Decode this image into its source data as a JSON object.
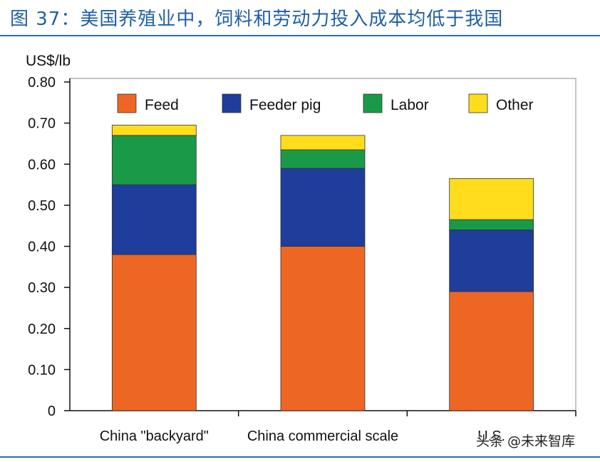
{
  "figure_title": "图 37：美国养殖业中，饲料和劳动力投入成本均低于我国",
  "watermark": "头条 @未来智库",
  "colors": {
    "title": "#1f5fa6",
    "rule": "#2b6cb3",
    "Feed": "#ee6623",
    "Feeder pig": "#1f3d9a",
    "Labor": "#1a9a48",
    "Other": "#ffdd1c"
  },
  "chart_data": {
    "type": "bar",
    "stacked": true,
    "ylabel": "US$/lb",
    "ylim": [
      0,
      0.8
    ],
    "yticks": [
      "0",
      "0.10",
      "0.20",
      "0.30",
      "0.40",
      "0.50",
      "0.60",
      "0.70",
      "0.80"
    ],
    "ytick_values": [
      0,
      0.1,
      0.2,
      0.3,
      0.4,
      0.5,
      0.6,
      0.7,
      0.8
    ],
    "categories": [
      "China \"backyard\"",
      "China commercial scale",
      "U.S."
    ],
    "series": [
      {
        "name": "Feed",
        "values": [
          0.38,
          0.4,
          0.29
        ]
      },
      {
        "name": "Feeder pig",
        "values": [
          0.17,
          0.19,
          0.15
        ]
      },
      {
        "name": "Labor",
        "values": [
          0.12,
          0.045,
          0.025
        ]
      },
      {
        "name": "Other",
        "values": [
          0.025,
          0.035,
          0.1
        ]
      }
    ],
    "legend": "top",
    "grid": false
  }
}
